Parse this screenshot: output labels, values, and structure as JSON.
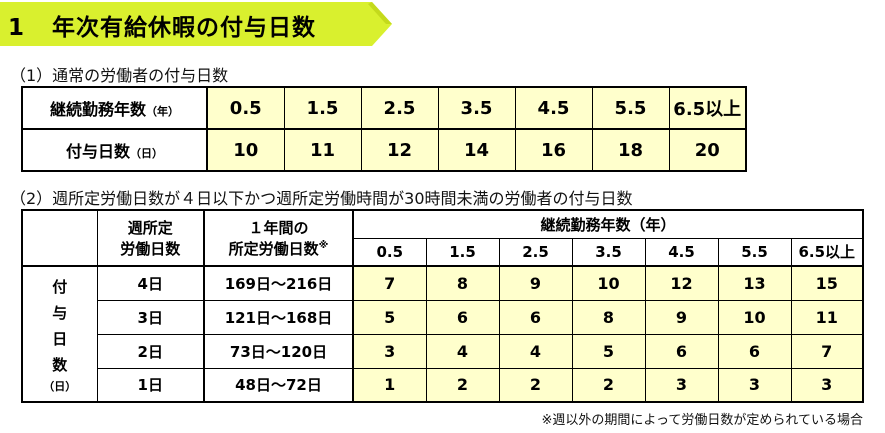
{
  "section_title": {
    "number": "1",
    "text": "年次有給休暇の付与日数"
  },
  "colors": {
    "banner": "#d9f02e",
    "cell_fill": "#ffffcc"
  },
  "sub1": {
    "heading": "（1）通常の労働者の付与日数",
    "row_header_years": "継続勤務年数",
    "row_header_years_unit": "（年）",
    "row_header_days": "付与日数",
    "row_header_days_unit": "（日）",
    "years": [
      "0.5",
      "1.5",
      "2.5",
      "3.5",
      "4.5",
      "5.5",
      "6.5以上"
    ],
    "days": [
      "10",
      "11",
      "12",
      "14",
      "16",
      "18",
      "20"
    ]
  },
  "sub2": {
    "heading": "（2）週所定労働日数が４日以下かつ週所定労働時間が30時間未満の労働者の付与日数",
    "col_weekly_line1": "週所定",
    "col_weekly_line2": "労働日数",
    "col_annual_line1": "１年間の",
    "col_annual_line2": "所定労働日数",
    "col_annual_mark": "※",
    "col_years": "継続勤務年数（年）",
    "side_label_chars": [
      "付",
      "与",
      "日",
      "数"
    ],
    "side_label_unit": "（日）",
    "years": [
      "0.5",
      "1.5",
      "2.5",
      "3.5",
      "4.5",
      "5.5",
      "6.5以上"
    ],
    "rows": [
      {
        "weekly": "4日",
        "annual": "169日～216日",
        "values": [
          "7",
          "8",
          "9",
          "10",
          "12",
          "13",
          "15"
        ]
      },
      {
        "weekly": "3日",
        "annual": "121日～168日",
        "values": [
          "5",
          "6",
          "6",
          "8",
          "9",
          "10",
          "11"
        ]
      },
      {
        "weekly": "2日",
        "annual": "73日～120日",
        "values": [
          "3",
          "4",
          "4",
          "5",
          "6",
          "6",
          "7"
        ]
      },
      {
        "weekly": "1日",
        "annual": "48日～72日",
        "values": [
          "1",
          "2",
          "2",
          "2",
          "3",
          "3",
          "3"
        ]
      }
    ],
    "note": "※週以外の期間によって労働日数が定められている場合"
  }
}
